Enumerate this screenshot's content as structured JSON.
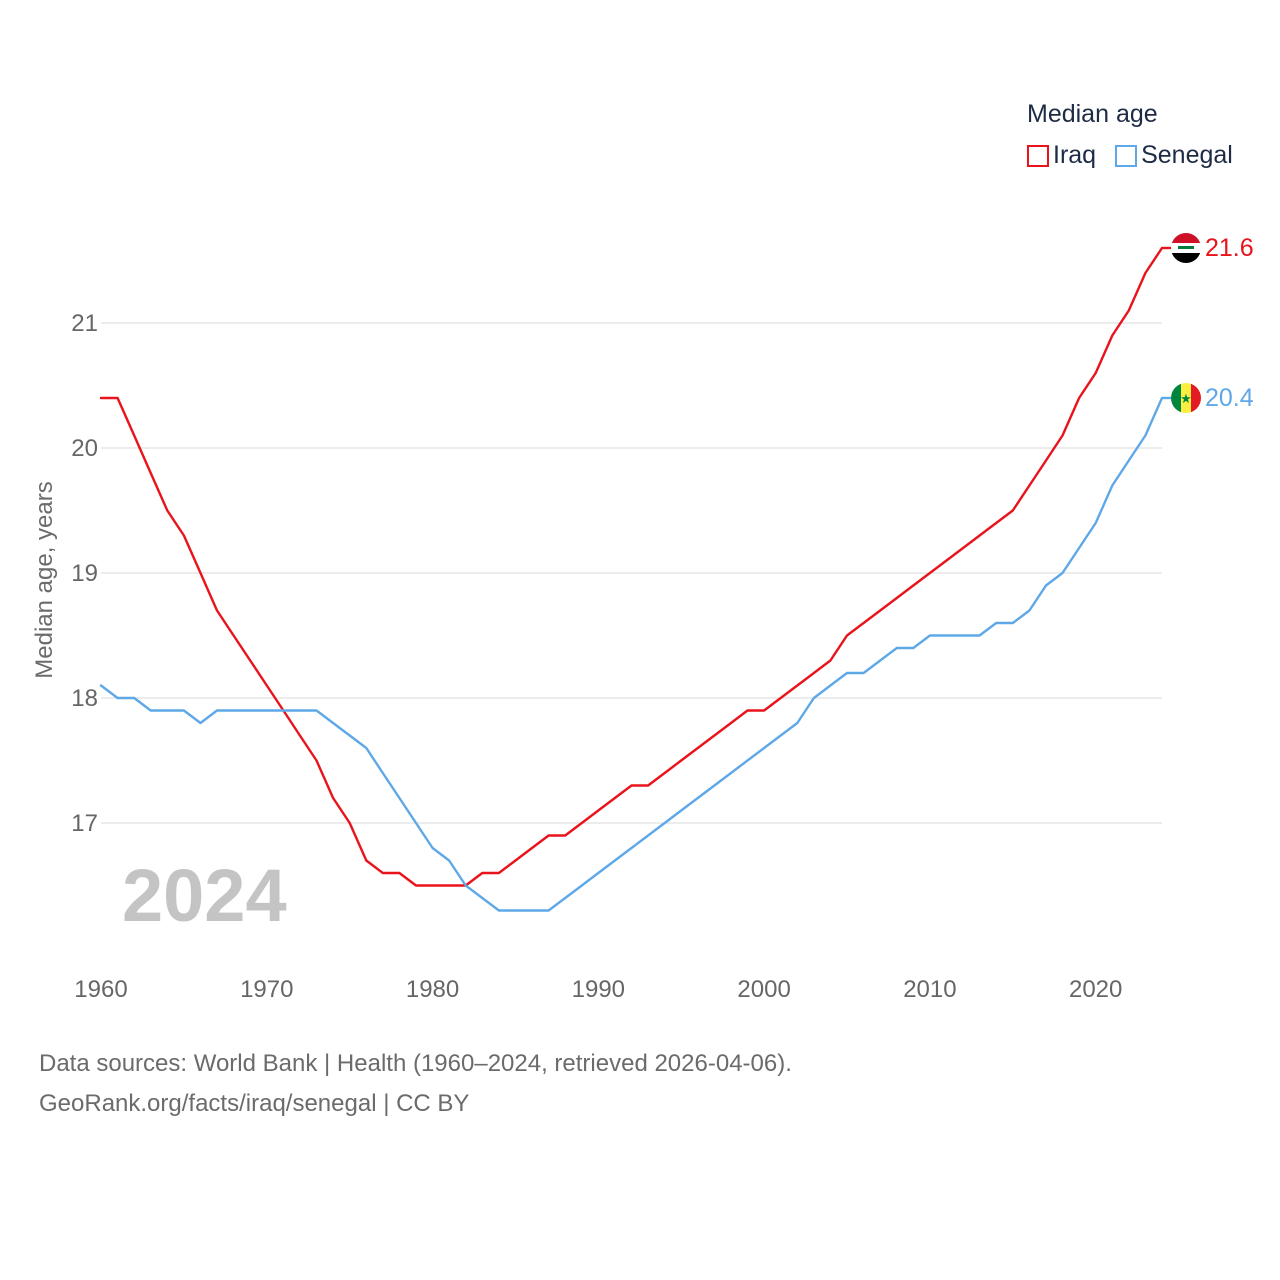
{
  "legend": {
    "title": "Median age",
    "items": [
      {
        "label": "Iraq",
        "color": "#e8131b"
      },
      {
        "label": "Senegal",
        "color": "#5fa8e8"
      }
    ]
  },
  "source": {
    "line1": "Data sources: World Bank | Health (1960–2024, retrieved 2026-04-06).",
    "line2": "GeoRank.org/facts/iraq/senegal | CC BY"
  },
  "chart_data": {
    "type": "line",
    "title": "Median age",
    "year_label": "2024",
    "xlabel": "",
    "ylabel": "Median age, years",
    "xlim": [
      1960,
      2024
    ],
    "ylim": [
      16.0,
      22.0
    ],
    "x_ticks": [
      1960,
      1970,
      1980,
      1990,
      2000,
      2010,
      2020
    ],
    "y_ticks": [
      17,
      18,
      19,
      20,
      21
    ],
    "grid": true,
    "x": [
      1960,
      1961,
      1962,
      1963,
      1964,
      1965,
      1966,
      1967,
      1968,
      1969,
      1970,
      1971,
      1972,
      1973,
      1974,
      1975,
      1976,
      1977,
      1978,
      1979,
      1980,
      1981,
      1982,
      1983,
      1984,
      1985,
      1986,
      1987,
      1988,
      1989,
      1990,
      1991,
      1992,
      1993,
      1994,
      1995,
      1996,
      1997,
      1998,
      1999,
      2000,
      2001,
      2002,
      2003,
      2004,
      2005,
      2006,
      2007,
      2008,
      2009,
      2010,
      2011,
      2012,
      2013,
      2014,
      2015,
      2016,
      2017,
      2018,
      2019,
      2020,
      2021,
      2022,
      2023,
      2024
    ],
    "series": [
      {
        "name": "Iraq",
        "color": "#e8131b",
        "end_label": "21.6",
        "values": [
          20.4,
          20.4,
          20.1,
          19.8,
          19.5,
          19.3,
          19.0,
          18.7,
          18.5,
          18.3,
          18.1,
          17.9,
          17.7,
          17.5,
          17.2,
          17.0,
          16.7,
          16.6,
          16.6,
          16.5,
          16.5,
          16.5,
          16.5,
          16.6,
          16.6,
          16.7,
          16.8,
          16.9,
          16.9,
          17.0,
          17.1,
          17.2,
          17.3,
          17.3,
          17.4,
          17.5,
          17.6,
          17.7,
          17.8,
          17.9,
          17.9,
          18.0,
          18.1,
          18.2,
          18.3,
          18.5,
          18.6,
          18.7,
          18.8,
          18.9,
          19.0,
          19.1,
          19.2,
          19.3,
          19.4,
          19.5,
          19.7,
          19.9,
          20.1,
          20.4,
          20.6,
          20.9,
          21.1,
          21.4,
          21.6
        ]
      },
      {
        "name": "Senegal",
        "color": "#5fa8e8",
        "end_label": "20.4",
        "values": [
          18.1,
          18.0,
          18.0,
          17.9,
          17.9,
          17.9,
          17.8,
          17.9,
          17.9,
          17.9,
          17.9,
          17.9,
          17.9,
          17.9,
          17.8,
          17.7,
          17.6,
          17.4,
          17.2,
          17.0,
          16.8,
          16.7,
          16.5,
          16.4,
          16.3,
          16.3,
          16.3,
          16.3,
          16.4,
          16.5,
          16.6,
          16.7,
          16.8,
          16.9,
          17.0,
          17.1,
          17.2,
          17.3,
          17.4,
          17.5,
          17.6,
          17.7,
          17.8,
          18.0,
          18.1,
          18.2,
          18.2,
          18.3,
          18.4,
          18.4,
          18.5,
          18.5,
          18.5,
          18.5,
          18.6,
          18.6,
          18.7,
          18.9,
          19.0,
          19.2,
          19.4,
          19.7,
          19.9,
          20.1,
          20.4
        ]
      }
    ]
  }
}
